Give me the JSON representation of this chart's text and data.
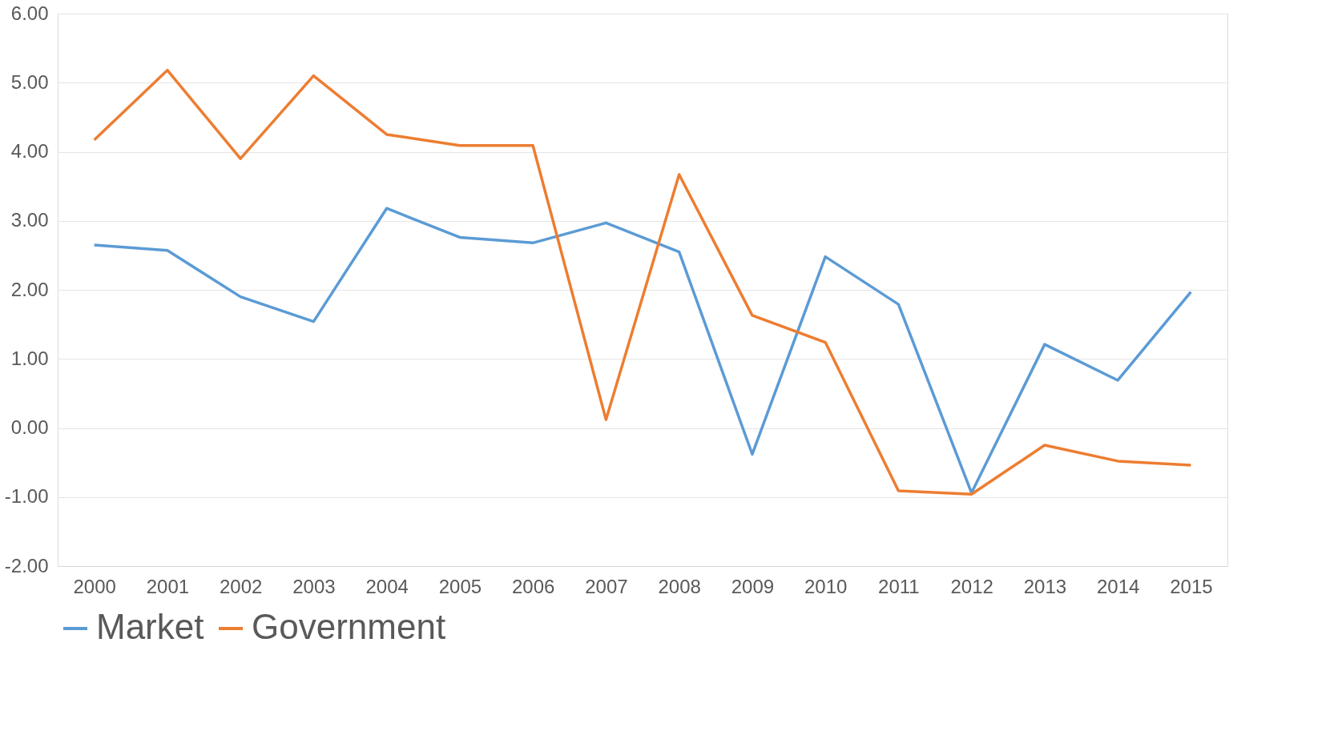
{
  "chart_data": {
    "type": "line",
    "categories": [
      "2000",
      "2001",
      "2002",
      "2003",
      "2004",
      "2005",
      "2006",
      "2007",
      "2008",
      "2009",
      "2010",
      "2011",
      "2012",
      "2013",
      "2014",
      "2015"
    ],
    "series": [
      {
        "name": "Market",
        "color": "#5b9bd5",
        "values": [
          2.65,
          2.57,
          1.9,
          1.54,
          3.18,
          2.76,
          2.68,
          2.97,
          2.55,
          -0.38,
          2.48,
          1.79,
          -0.94,
          1.21,
          0.69,
          1.97
        ]
      },
      {
        "name": "Government",
        "color": "#ed7d31",
        "values": [
          4.17,
          5.18,
          3.9,
          5.1,
          4.25,
          4.09,
          4.09,
          0.12,
          3.67,
          1.63,
          1.24,
          -0.91,
          -0.96,
          -0.25,
          -0.48,
          -0.54
        ]
      }
    ],
    "ylim": [
      -2,
      6
    ],
    "yticks": [
      {
        "value": -2,
        "label": "-2.00"
      },
      {
        "value": -1,
        "label": "-1.00"
      },
      {
        "value": 0,
        "label": "0.00"
      },
      {
        "value": 1,
        "label": "1.00"
      },
      {
        "value": 2,
        "label": "2.00"
      },
      {
        "value": 3,
        "label": "3.00"
      },
      {
        "value": 4,
        "label": "4.00"
      },
      {
        "value": 5,
        "label": "5.00"
      },
      {
        "value": 6,
        "label": "6.00"
      }
    ],
    "grid": "y",
    "legend": "bottom",
    "marker": "none",
    "line_style": "solid"
  }
}
